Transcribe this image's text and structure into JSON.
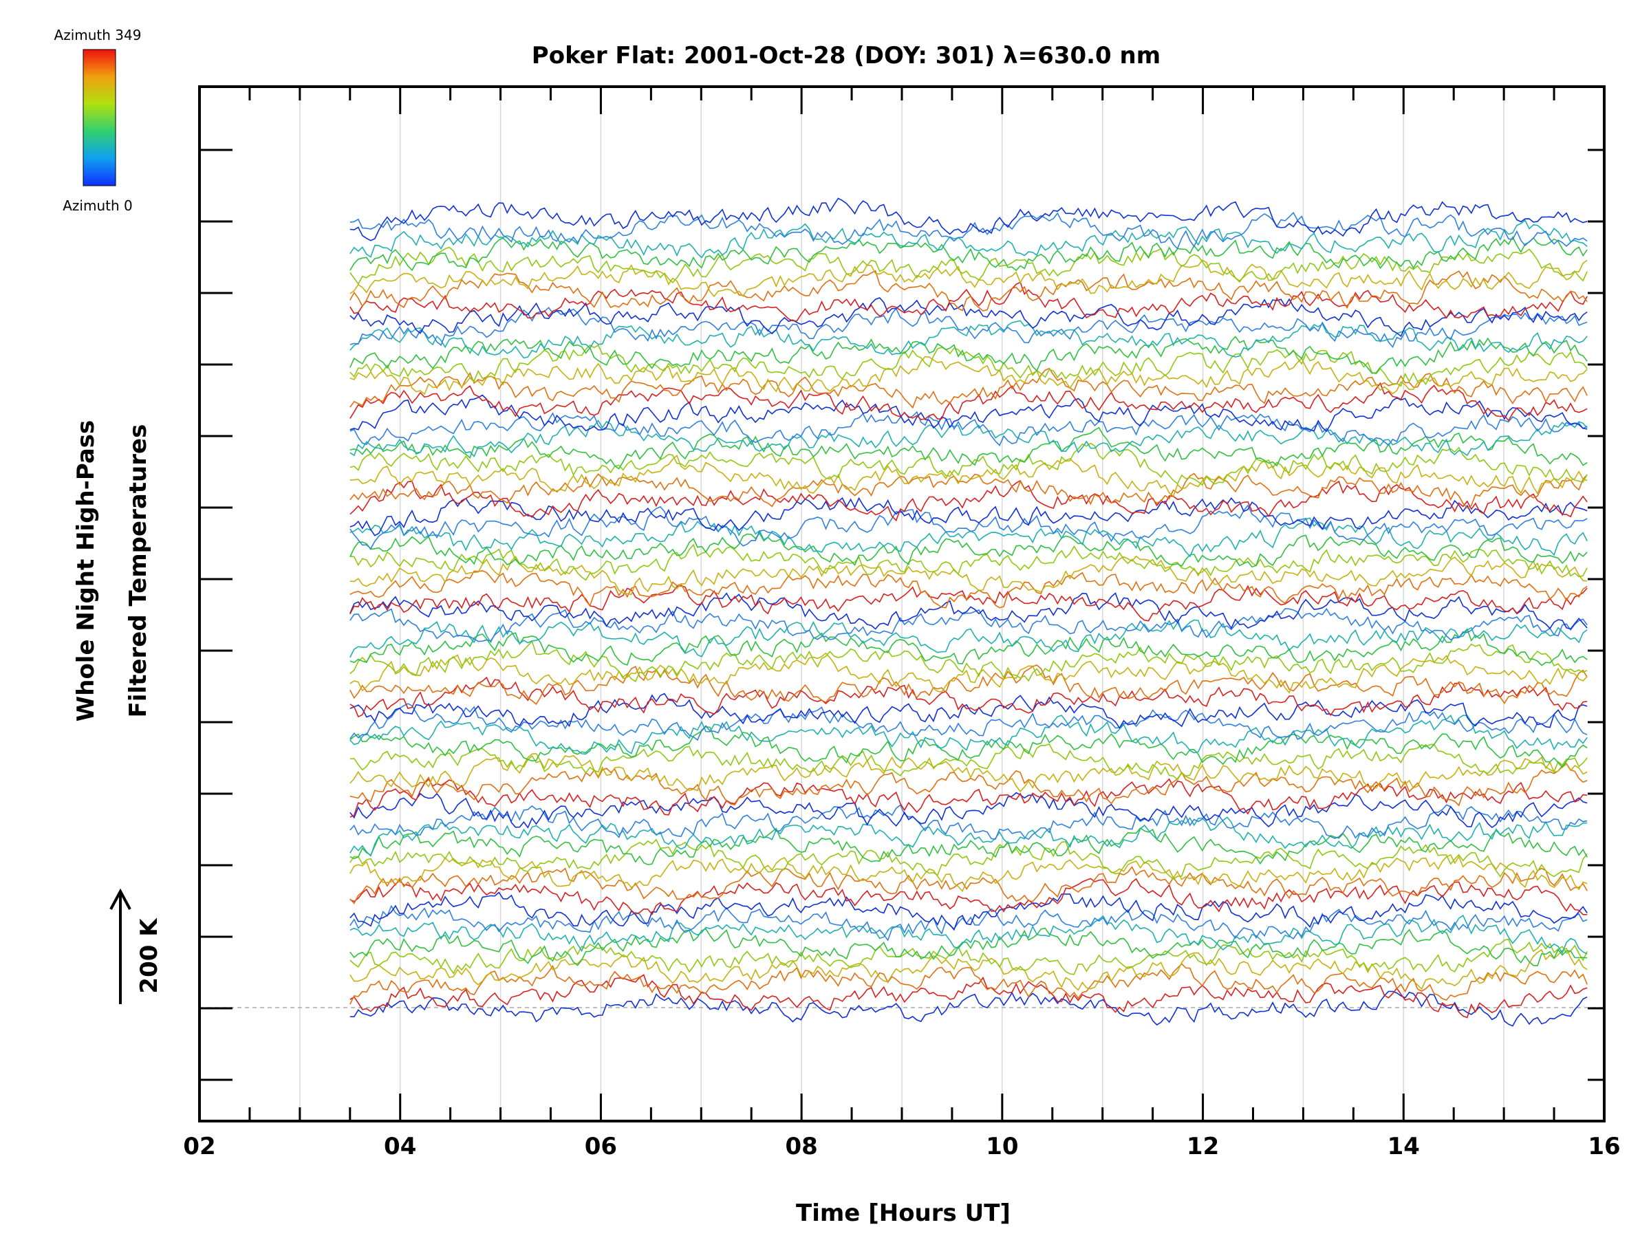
{
  "chart_data": {
    "type": "line",
    "title": "Poker Flat: 2001-Oct-28 (DOY: 301) λ=630.0 nm",
    "xlabel": "Time [Hours UT]",
    "ylabel_line1": "Whole Night High-Pass",
    "ylabel_line2": "Filtered Temperatures",
    "xlim": [
      2,
      16
    ],
    "x_ticks": [
      2,
      4,
      6,
      8,
      10,
      12,
      14,
      16
    ],
    "x_tick_labels": [
      "02",
      "04",
      "06",
      "08",
      "10",
      12,
      14,
      16
    ],
    "x_start": 3.5,
    "x_end": 15.83,
    "scale_bar_label": "200 K",
    "colorbar": {
      "top_label": "Azimuth 349",
      "bottom_label": "Azimuth 0",
      "colormap": "rainbow"
    },
    "series_count": 65,
    "series_colors_cycle": [
      "#1030d8",
      "#d82020",
      "#e07010",
      "#c8b010",
      "#90c810",
      "#30c040",
      "#20b0b0",
      "#3080e0"
    ],
    "baseline_series_offsets": [
      0,
      1,
      2,
      3,
      4,
      5,
      6,
      7,
      8,
      9,
      10,
      11,
      12,
      13,
      14,
      15
    ]
  }
}
